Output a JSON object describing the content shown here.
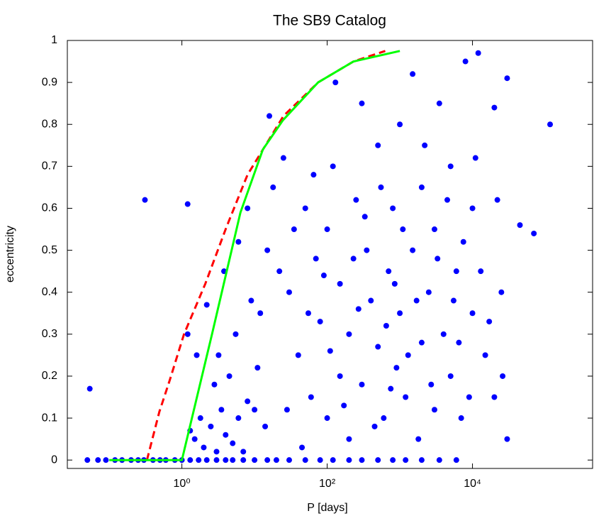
{
  "chart_data": {
    "type": "scatter",
    "title": "The SB9 Catalog",
    "xlabel": "P [days]",
    "ylabel": "eccentricity",
    "xscale": "log",
    "xlim": [
      0.0265,
      450000
    ],
    "ylim": [
      -0.02,
      1
    ],
    "xticks": [
      {
        "value": 1,
        "label": "10⁰"
      },
      {
        "value": 100,
        "label": "10²"
      },
      {
        "value": 10000,
        "label": "10⁴"
      }
    ],
    "yticks": [
      0,
      0.1,
      0.2,
      0.3,
      0.4,
      0.5,
      0.6,
      0.7,
      0.8,
      0.9,
      1
    ],
    "series": [
      {
        "type": "scatter",
        "color": "#0000ff",
        "x": [
          0.05,
          0.07,
          0.09,
          0.12,
          0.15,
          0.2,
          0.25,
          0.3,
          0.4,
          0.5,
          0.6,
          0.8,
          1,
          1.3,
          1.7,
          2.2,
          3,
          4,
          5,
          7,
          10,
          15,
          20,
          30,
          50,
          80,
          120,
          200,
          300,
          500,
          800,
          1200,
          2000,
          3500,
          6000,
          1.5,
          2,
          2.5,
          3,
          3.5,
          4,
          5,
          6,
          7,
          8,
          2.8,
          4.5,
          1.8,
          3.2,
          5.5,
          1.3,
          1.2,
          1.6,
          2.2,
          3.8,
          6,
          8,
          10,
          12,
          15,
          18,
          25,
          16,
          30,
          40,
          50,
          60,
          70,
          80,
          100,
          100,
          120,
          150,
          150,
          200,
          200,
          250,
          300,
          300,
          350,
          400,
          500,
          500,
          600,
          700,
          800,
          900,
          1000,
          1000,
          1200,
          1500,
          1500,
          2000,
          2000,
          2500,
          3000,
          3000,
          3500,
          4000,
          5000,
          5000,
          6000,
          7000,
          8000,
          10000,
          10000,
          12000,
          15000,
          20000,
          20000,
          25000,
          30000,
          30000,
          45000,
          70000,
          117000,
          0.054,
          0.31,
          1.2,
          9,
          11,
          14,
          22,
          28,
          35,
          45,
          55,
          65,
          90,
          110,
          130,
          170,
          230,
          270,
          330,
          450,
          550,
          650,
          750,
          850,
          1100,
          1300,
          1700,
          1800,
          2200,
          2700,
          3300,
          4500,
          5500,
          6500,
          7500,
          9000,
          11000,
          13000,
          17000,
          22000,
          26000
        ],
        "values": [
          0,
          0,
          0,
          0,
          0,
          0,
          0,
          0,
          0,
          0,
          0,
          0,
          0,
          0,
          0,
          0,
          0,
          0,
          0,
          0,
          0,
          0,
          0,
          0,
          0,
          0,
          0,
          0,
          0,
          0,
          0,
          0,
          0,
          0,
          0,
          0.05,
          0.03,
          0.08,
          0.02,
          0.12,
          0.06,
          0.04,
          0.1,
          0.02,
          0.14,
          0.18,
          0.2,
          0.1,
          0.25,
          0.3,
          0.07,
          0.3,
          0.25,
          0.37,
          0.45,
          0.52,
          0.6,
          0.12,
          0.35,
          0.5,
          0.65,
          0.72,
          0.82,
          0.4,
          0.25,
          0.6,
          0.15,
          0.48,
          0.33,
          0.1,
          0.55,
          0.7,
          0.2,
          0.42,
          0.05,
          0.3,
          0.62,
          0.85,
          0.18,
          0.5,
          0.38,
          0.27,
          0.75,
          0.1,
          0.45,
          0.6,
          0.22,
          0.35,
          0.8,
          0.15,
          0.5,
          0.92,
          0.28,
          0.65,
          0.4,
          0.12,
          0.55,
          0.85,
          0.3,
          0.2,
          0.7,
          0.45,
          0.1,
          0.95,
          0.6,
          0.35,
          0.97,
          0.25,
          0.84,
          0.15,
          0.4,
          0.91,
          0.05,
          0.56,
          0.54,
          0.8,
          0.17,
          0.62,
          0.61,
          0.38,
          0.22,
          0.08,
          0.45,
          0.12,
          0.55,
          0.03,
          0.35,
          0.68,
          0.44,
          0.26,
          0.9,
          0.13,
          0.48,
          0.36,
          0.58,
          0.08,
          0.65,
          0.32,
          0.17,
          0.42,
          0.55,
          0.25,
          0.38,
          0.05,
          0.75,
          0.18,
          0.48,
          0.62,
          0.38,
          0.28,
          0.52,
          0.15,
          0.72,
          0.45,
          0.33,
          0.62,
          0.2
        ]
      },
      {
        "type": "line",
        "color": "#ff0000",
        "dash": true,
        "x": [
          0.33,
          0.49,
          0.68,
          1.07,
          2.1,
          4.1,
          8,
          25,
          75,
          230,
          630
        ],
        "values": [
          0,
          0.115,
          0.19,
          0.3,
          0.42,
          0.555,
          0.68,
          0.82,
          0.9,
          0.95,
          0.975
        ]
      },
      {
        "type": "line",
        "color": "#00ff00",
        "dash": false,
        "x": [
          0.1,
          1,
          2.6,
          6.4,
          13,
          24.6,
          75,
          230,
          1000
        ],
        "values": [
          0,
          0,
          0.3,
          0.59,
          0.74,
          0.81,
          0.9,
          0.95,
          0.975
        ]
      }
    ]
  }
}
